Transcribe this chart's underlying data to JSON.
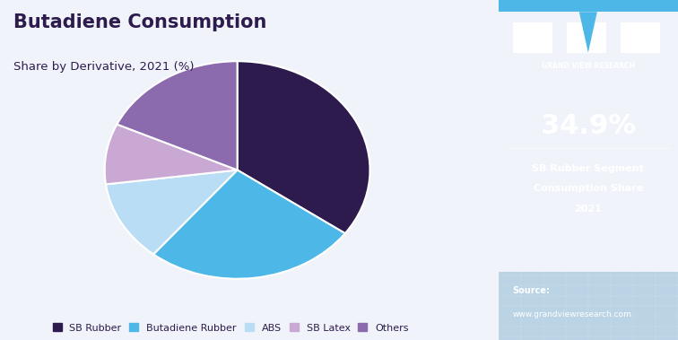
{
  "title_main": "Butadiene Consumption",
  "title_sub": "Share by Derivative, 2021 (%)",
  "slices": [
    {
      "label": "SB Rubber",
      "value": 34.9,
      "color": "#2d1b4e"
    },
    {
      "label": "Butadiene Rubber",
      "value": 26.0,
      "color": "#4db8e8"
    },
    {
      "label": "ABS",
      "value": 12.0,
      "color": "#b8ddf5"
    },
    {
      "label": "SB Latex",
      "value": 9.0,
      "color": "#c9a8d4"
    },
    {
      "label": "Others",
      "value": 18.1,
      "color": "#8b6aad"
    }
  ],
  "bg_color": "#f0f4fa",
  "right_panel_bg": "#3b2466",
  "highlight_pct": "34.9%",
  "highlight_label1": "SB Rubber Segment",
  "highlight_label2": "Consumption Share",
  "highlight_label3": "2021",
  "source_label": "Source:",
  "source_url": "www.grandviewresearch.com",
  "legend_labels": [
    "SB Rubber",
    "Butadiene Rubber",
    "ABS",
    "SB Latex",
    "Others"
  ],
  "legend_colors": [
    "#2d1b4e",
    "#4db8e8",
    "#b8ddf5",
    "#c9a8d4",
    "#8b6aad"
  ],
  "start_angle": 90,
  "pie_aspect": 0.82,
  "top_bar_color": "#4db8e8",
  "bottom_bg_color": "#7aadcc"
}
